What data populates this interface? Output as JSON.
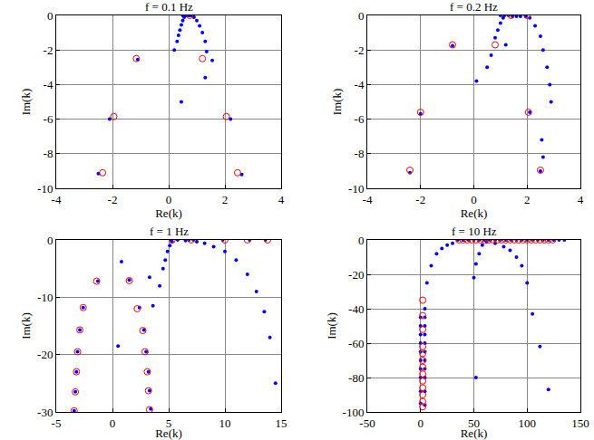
{
  "chart_data": [
    {
      "type": "scatter",
      "title": "f = 0.1 Hz",
      "x_label": "Re(k)",
      "y_label": "Im(k)",
      "xlim": [
        -4,
        4
      ],
      "xticks": [
        -4,
        -2,
        0,
        2,
        4
      ],
      "ylim": [
        -10,
        0
      ],
      "yticks": [
        -10,
        -8,
        -6,
        -4,
        -2,
        0
      ],
      "grid": true,
      "series": [
        {
          "color": "#0000ff",
          "marker": "dot",
          "x": [
            0.5,
            0.55,
            0.6,
            0.65,
            0.7,
            0.75,
            0.8,
            0.55,
            0.5,
            0.45,
            0.4,
            0.35,
            0.3,
            0.2,
            0.45,
            0.9,
            1.0,
            1.1,
            1.2,
            1.3,
            1.35,
            1.55,
            1.3,
            -1.1,
            -2.1,
            2.2,
            -2.5,
            2.6
          ],
          "y": [
            0,
            0,
            0,
            0,
            0,
            0,
            0,
            -0.1,
            -0.3,
            -0.55,
            -0.85,
            -1.15,
            -1.5,
            -2.0,
            -5.0,
            -0.1,
            -0.3,
            -0.6,
            -1.0,
            -1.5,
            -2.1,
            -2.6,
            -3.6,
            -2.55,
            -6.0,
            -6.0,
            -9.15,
            -9.2
          ]
        },
        {
          "color": "#ff0000",
          "marker": "open_circle",
          "x": [
            0.75,
            -1.15,
            1.2,
            -1.95,
            2.05,
            -2.35,
            2.45
          ],
          "y": [
            0,
            -2.5,
            -2.5,
            -5.85,
            -5.85,
            -9.1,
            -9.1
          ]
        }
      ]
    },
    {
      "type": "scatter",
      "title": "f = 0.2 Hz",
      "x_label": "Re(k)",
      "y_label": "Im(k)",
      "xlim": [
        -4,
        4
      ],
      "xticks": [
        -4,
        -2,
        0,
        2,
        4
      ],
      "ylim": [
        -10,
        0
      ],
      "yticks": [
        -10,
        -8,
        -6,
        -4,
        -2,
        0
      ],
      "grid": true,
      "series": [
        {
          "color": "#0000ff",
          "marker": "dot",
          "x": [
            1.0,
            1.15,
            1.3,
            1.45,
            1.6,
            1.75,
            1.95,
            1.1,
            1.0,
            0.9,
            0.8,
            1.2,
            0.65,
            0.5,
            0.1,
            2.1,
            2.3,
            2.5,
            2.6,
            2.75,
            2.85,
            2.9,
            2.55,
            2.6,
            -0.8,
            -2.0,
            2.1,
            -2.4,
            2.5
          ],
          "y": [
            0,
            0,
            0,
            -0.05,
            -0.05,
            -0.05,
            -0.05,
            -0.15,
            -0.45,
            -0.85,
            -1.3,
            -1.7,
            -2.3,
            -3.0,
            -3.8,
            -0.15,
            -0.6,
            -1.2,
            -2.0,
            -3.0,
            -4.0,
            -5.0,
            -7.2,
            -8.2,
            -1.75,
            -5.7,
            -5.6,
            -9.1,
            -9.0
          ]
        },
        {
          "color": "#ff0000",
          "marker": "open_circle",
          "x": [
            1.4,
            2.0,
            0.8,
            -0.8,
            -2.0,
            2.05,
            -2.4,
            2.5
          ],
          "y": [
            0,
            0,
            -1.7,
            -1.7,
            -5.6,
            -5.6,
            -8.95,
            -8.95
          ]
        }
      ]
    },
    {
      "type": "scatter",
      "title": "f = 1 Hz",
      "x_label": "Re(k)",
      "y_label": "Im(k)",
      "xlim": [
        -5,
        15
      ],
      "xticks": [
        -5,
        0,
        5,
        10,
        15
      ],
      "ylim": [
        -30,
        0
      ],
      "yticks": [
        -30,
        -20,
        -10,
        0
      ],
      "grid": true,
      "series": [
        {
          "color": "#0000ff",
          "marker": "dot",
          "x": [
            5.2,
            5.8,
            6.5,
            7.5,
            8.2,
            9.0,
            10.0,
            11.0,
            12.0,
            12.8,
            13.5,
            14.0,
            14.5,
            6.8,
            7.2,
            9.8,
            12.2,
            13.6,
            5.3,
            5.1,
            4.9,
            4.7,
            4.5,
            4.2,
            3.6,
            3.3,
            0.8,
            0.5,
            -1.3,
            -2.6,
            -2.9,
            -3.1,
            -3.2,
            -3.3,
            -3.4,
            1.5,
            2.4,
            2.8,
            3.0,
            3.2,
            3.3,
            3.4
          ],
          "y": [
            0,
            0,
            -0.1,
            -0.3,
            -0.6,
            -1.2,
            -2.0,
            -3.5,
            -6.0,
            -9.0,
            -12.5,
            -17.0,
            -25.0,
            0,
            0,
            0,
            0,
            0,
            -0.3,
            -1.0,
            -2.0,
            -3.5,
            -5.0,
            -8.0,
            -11.5,
            -6.5,
            -3.8,
            -18.5,
            -7.2,
            -11.8,
            -15.7,
            -19.5,
            -23.0,
            -26.5,
            -29.8,
            -7.0,
            -11.8,
            -15.7,
            -19.5,
            -23.0,
            -26.3,
            -29.5
          ]
        },
        {
          "color": "#ff0000",
          "marker": "open_circle",
          "x": [
            5.3,
            7.0,
            10.0,
            12.0,
            13.8,
            1.5,
            -1.4,
            2.2,
            -2.6,
            2.7,
            -2.9,
            2.9,
            -3.1,
            3.1,
            -3.2,
            3.2,
            -3.3,
            3.3,
            -3.4
          ],
          "y": [
            0,
            0,
            0,
            0,
            0,
            -7.1,
            -7.2,
            -12.0,
            -11.8,
            -15.8,
            -15.7,
            -19.5,
            -19.5,
            -23.0,
            -23.0,
            -26.3,
            -26.5,
            -29.6,
            -29.8
          ]
        }
      ]
    },
    {
      "type": "scatter",
      "title": "f = 10 Hz",
      "x_label": "Re(k)",
      "y_label": "Im(k)",
      "xlim": [
        -50,
        150
      ],
      "xticks": [
        -50,
        0,
        50,
        100,
        150
      ],
      "ylim": [
        -100,
        0
      ],
      "yticks": [
        -100,
        -80,
        -60,
        -40,
        -20,
        0
      ],
      "grid": true,
      "series": [
        {
          "color": "#0000ff",
          "marker": "dot",
          "x": [
            35,
            40,
            45,
            50,
            55,
            60,
            65,
            70,
            75,
            80,
            85,
            90,
            95,
            100,
            105,
            110,
            115,
            120,
            125,
            130,
            135,
            30,
            25,
            20,
            15,
            10,
            6,
            4,
            62,
            70,
            78,
            84,
            90,
            95,
            100,
            105,
            112,
            120,
            58,
            55,
            52,
            50,
            52,
            0,
            0,
            0,
            0,
            0,
            0,
            0,
            0,
            0,
            0,
            4,
            4,
            4,
            4,
            4,
            4,
            4,
            4,
            4,
            4
          ],
          "y": [
            0,
            0,
            0,
            0,
            0,
            0,
            0,
            0,
            0,
            0,
            0,
            0,
            0,
            0,
            0,
            0,
            0,
            0,
            0,
            0,
            0,
            -2,
            -3,
            -5,
            -8,
            -15,
            -25,
            -40,
            -1,
            -2,
            -4,
            -6,
            -10,
            -15,
            -25,
            -43,
            -62,
            -87,
            -3,
            -8,
            -14,
            -22,
            -80,
            -45,
            -50,
            -55,
            -60,
            -65,
            -70,
            -75,
            -80,
            -88,
            -95,
            -45,
            -50,
            -55,
            -60,
            -65,
            -70,
            -75,
            -80,
            -88,
            -96
          ]
        },
        {
          "color": "#ff0000",
          "marker": "open_circle",
          "x": [
            36,
            40,
            44,
            48,
            52,
            56,
            60,
            64,
            68,
            72,
            76,
            80,
            84,
            88,
            92,
            96,
            100,
            104,
            108,
            112,
            116,
            120,
            124,
            2,
            2,
            2,
            2,
            2,
            2,
            2,
            2,
            2,
            2,
            2,
            2,
            2
          ],
          "y": [
            0,
            0,
            0,
            0,
            0,
            0,
            0,
            0,
            0,
            0,
            0,
            0,
            0,
            0,
            0,
            0,
            0,
            0,
            0,
            0,
            0,
            0,
            0,
            -35,
            -44,
            -52,
            -62,
            -66,
            -70,
            -74,
            -78,
            -82,
            -86,
            -90,
            -94,
            -97
          ]
        }
      ]
    }
  ]
}
